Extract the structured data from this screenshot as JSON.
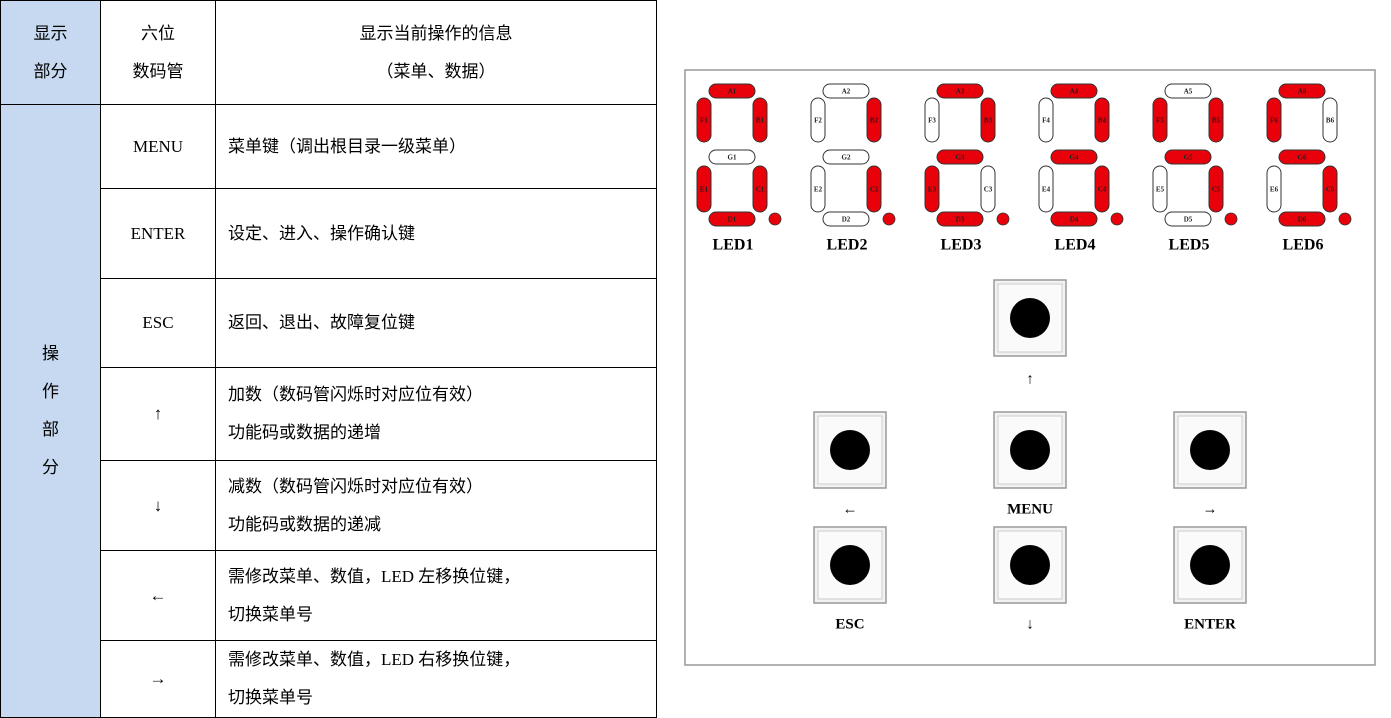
{
  "table": {
    "header": {
      "section": [
        "显示",
        "部分"
      ],
      "key": [
        "六位",
        "数码管"
      ],
      "desc": [
        "显示当前操作的信息",
        "（菜单、数据）"
      ]
    },
    "section": [
      "操",
      "作",
      "部",
      "分"
    ],
    "rows": [
      {
        "key": "MENU",
        "desc": [
          "菜单键（调出根目录一级菜单）"
        ]
      },
      {
        "key": "ENTER",
        "desc": [
          "设定、进入、操作确认键"
        ]
      },
      {
        "key": "ESC",
        "desc": [
          "返回、退出、故障复位键"
        ]
      },
      {
        "key": "↑",
        "desc": [
          "加数（数码管闪烁时对应位有效）",
          "功能码或数据的递增"
        ]
      },
      {
        "key": "↓",
        "desc": [
          "减数（数码管闪烁时对应位有效）",
          "功能码或数据的递减"
        ]
      },
      {
        "key": "←",
        "desc": [
          "需修改菜单、数值，LED 左移换位键，",
          "切换菜单号"
        ]
      },
      {
        "key": "→",
        "desc": [
          "需修改菜单、数值，LED 右移换位键，",
          "切换菜单号"
        ]
      }
    ]
  },
  "panel": {
    "leds": [
      {
        "name": "LED1",
        "dp": true,
        "segments": [
          {
            "label": "A1",
            "on": true
          },
          {
            "label": "B1",
            "on": true
          },
          {
            "label": "C1",
            "on": true
          },
          {
            "label": "D1",
            "on": true
          },
          {
            "label": "E1",
            "on": true
          },
          {
            "label": "F1",
            "on": true
          },
          {
            "label": "G1",
            "on": false
          }
        ]
      },
      {
        "name": "LED2",
        "dp": true,
        "segments": [
          {
            "label": "A2",
            "on": false
          },
          {
            "label": "B2",
            "on": true
          },
          {
            "label": "C2",
            "on": true
          },
          {
            "label": "D2",
            "on": false
          },
          {
            "label": "E2",
            "on": false
          },
          {
            "label": "F2",
            "on": false
          },
          {
            "label": "G2",
            "on": false
          }
        ]
      },
      {
        "name": "LED3",
        "dp": true,
        "segments": [
          {
            "label": "A3",
            "on": true
          },
          {
            "label": "B3",
            "on": true
          },
          {
            "label": "C3",
            "on": false
          },
          {
            "label": "D3",
            "on": true
          },
          {
            "label": "E3",
            "on": true
          },
          {
            "label": "F3",
            "on": false
          },
          {
            "label": "G3",
            "on": true
          }
        ]
      },
      {
        "name": "LED4",
        "dp": true,
        "segments": [
          {
            "label": "A4",
            "on": true
          },
          {
            "label": "B4",
            "on": true
          },
          {
            "label": "C4",
            "on": true
          },
          {
            "label": "D4",
            "on": true
          },
          {
            "label": "E4",
            "on": false
          },
          {
            "label": "F4",
            "on": false
          },
          {
            "label": "G4",
            "on": true
          }
        ]
      },
      {
        "name": "LED5",
        "dp": true,
        "segments": [
          {
            "label": "A5",
            "on": false
          },
          {
            "label": "B5",
            "on": true
          },
          {
            "label": "C5",
            "on": true
          },
          {
            "label": "D5",
            "on": false
          },
          {
            "label": "E5",
            "on": false
          },
          {
            "label": "F5",
            "on": true
          },
          {
            "label": "G5",
            "on": true
          }
        ]
      },
      {
        "name": "LED6",
        "dp": true,
        "segments": [
          {
            "label": "A6",
            "on": true
          },
          {
            "label": "B6",
            "on": false
          },
          {
            "label": "C6",
            "on": true
          },
          {
            "label": "D6",
            "on": true
          },
          {
            "label": "E6",
            "on": false
          },
          {
            "label": "F6",
            "on": true
          },
          {
            "label": "G6",
            "on": true
          }
        ]
      }
    ],
    "buttons": [
      "↑",
      "←",
      "MENU",
      "→",
      "ESC",
      "↓",
      "ENTER"
    ]
  }
}
